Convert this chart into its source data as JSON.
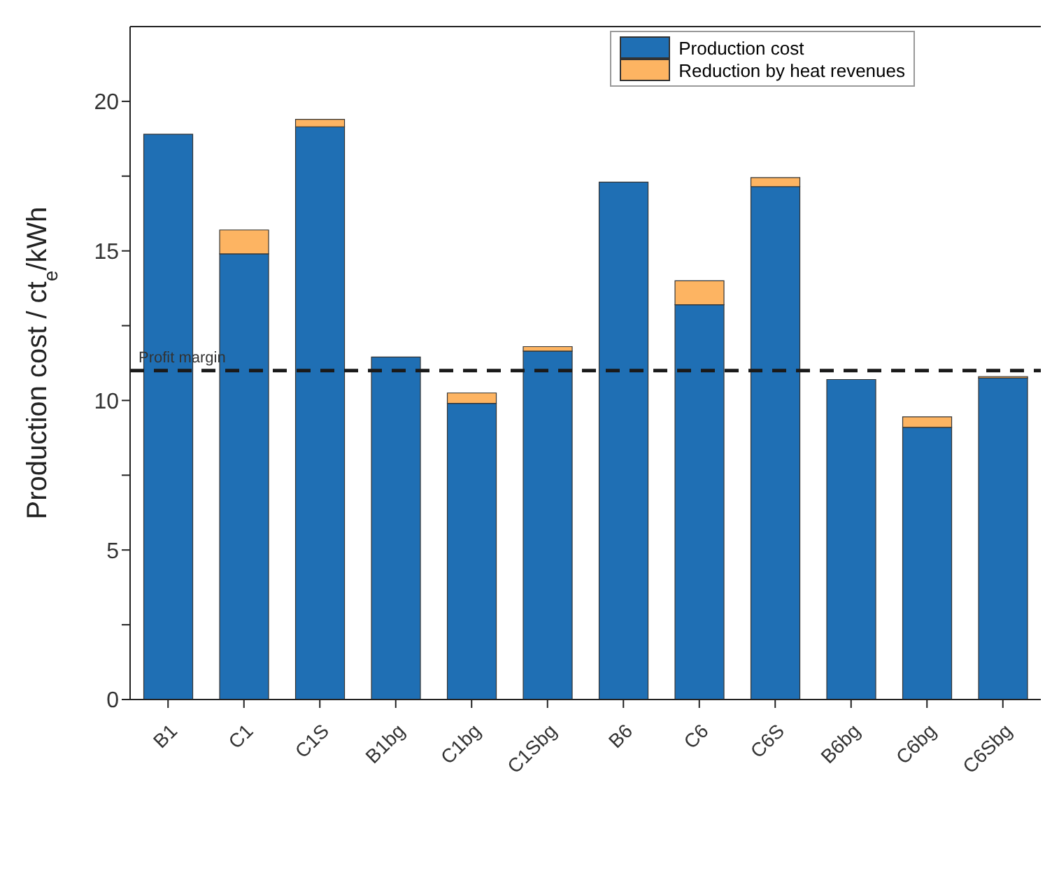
{
  "chart_data": {
    "type": "bar",
    "stacked": true,
    "ylabel": "Production cost / ct$_{e}$/kWh",
    "categories": [
      "B1",
      "C1",
      "C1S",
      "B1bg",
      "C1bg",
      "C1Sbg",
      "B6",
      "C6",
      "C6S",
      "B6bg",
      "C6bg",
      "C6Sbg"
    ],
    "series": [
      {
        "name": "Production cost",
        "color": "#1f6fb4",
        "values": [
          18.9,
          14.9,
          19.15,
          11.45,
          9.9,
          11.65,
          17.3,
          13.2,
          17.15,
          10.7,
          9.1,
          10.75
        ]
      },
      {
        "name": "Reduction by heat revenues",
        "color": "#fdb462",
        "values": [
          0,
          0.8,
          0.25,
          0,
          0.35,
          0.15,
          0,
          0.8,
          0.3,
          0,
          0.35,
          0.05
        ]
      }
    ],
    "ylim": [
      0,
      22.5
    ],
    "yticks": [
      0,
      {
        "value": 2.5,
        "label": null
      },
      5,
      {
        "value": 7.5,
        "label": null
      },
      10,
      {
        "value": 12.5,
        "label": null
      },
      15,
      {
        "value": 17.5,
        "label": null
      },
      20
    ],
    "ref_lines": [
      {
        "axis": "y",
        "value": 11,
        "label": "Profit margin",
        "color": "#1a1a1a",
        "line_style": "dashed"
      }
    ],
    "legend": "top right"
  }
}
